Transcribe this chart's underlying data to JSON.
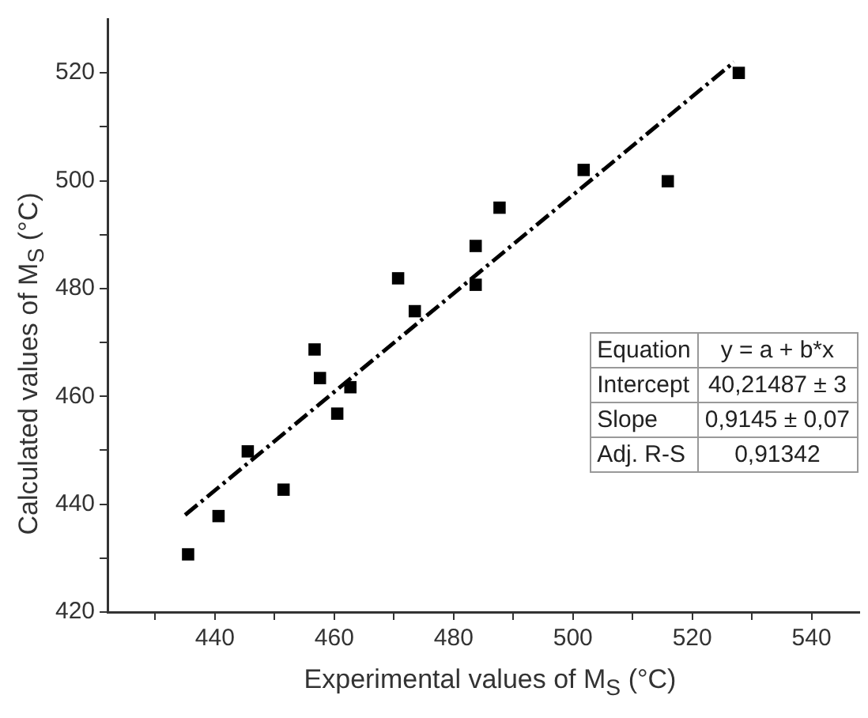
{
  "chart_data": {
    "type": "scatter",
    "xlabel": "Experimental values of M$_{S}$ (°C)",
    "ylabel": "Calculated values of M$_{S}$ (°C)",
    "xlim": [
      422,
      548
    ],
    "ylim": [
      420,
      530
    ],
    "xticks": [
      {
        "value": 430,
        "label": null
      },
      440,
      {
        "value": 450,
        "label": null
      },
      460,
      {
        "value": 470,
        "label": null
      },
      480,
      {
        "value": 490,
        "label": null
      },
      500,
      {
        "value": 510,
        "label": null
      },
      520,
      {
        "value": 530,
        "label": null
      },
      540
    ],
    "yticks": [
      420,
      {
        "value": 430,
        "label": null
      },
      440,
      {
        "value": 450,
        "label": null
      },
      460,
      {
        "value": 470,
        "label": null
      },
      480,
      {
        "value": 490,
        "label": null
      },
      500,
      {
        "value": 510,
        "label": null
      },
      520
    ],
    "grid": false,
    "legend": false,
    "marker": "square",
    "series": [
      {
        "color": "#000000",
        "x": [
          435.5,
          440.6,
          445.5,
          451.5,
          456.7,
          457.6,
          460.5,
          462.7,
          470.7,
          473.5,
          483.7,
          483.7,
          487.7,
          501.8,
          515.9,
          527.8
        ],
        "values": [
          430.7,
          437.8,
          449.8,
          442.7,
          468.7,
          463.4,
          456.8,
          461.7,
          481.9,
          475.8,
          487.9,
          480.7,
          495.0,
          502.0,
          499.9,
          520.0
        ]
      },
      {
        "type": "line",
        "color": "#000000",
        "line_style": "dashed",
        "marker": "none",
        "x": [
          435,
          527
        ],
        "values": [
          438,
          522
        ]
      }
    ],
    "annotations": [
      "Equation",
      "y = a + b*x",
      "Intercept",
      "40,21487 ± 3",
      "Slope",
      "0,9145 ± 0,07",
      "Adj. R-S",
      "0,91342"
    ]
  }
}
